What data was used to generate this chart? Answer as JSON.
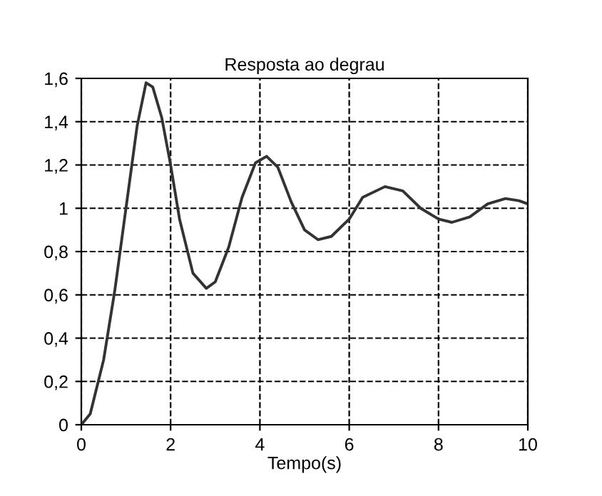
{
  "chart_data": {
    "type": "line",
    "title": "Resposta ao degrau",
    "xlabel": "Tempo(s)",
    "x": [
      0,
      0.2,
      0.5,
      0.75,
      1.0,
      1.25,
      1.45,
      1.6,
      1.8,
      2.0,
      2.2,
      2.5,
      2.8,
      3.0,
      3.3,
      3.6,
      3.9,
      4.15,
      4.4,
      4.7,
      5.0,
      5.3,
      5.6,
      6.0,
      6.3,
      6.8,
      7.2,
      7.6,
      8.0,
      8.3,
      8.7,
      9.1,
      9.5,
      9.8,
      10
    ],
    "series": [
      {
        "color": "#333333",
        "values": [
          0,
          0.05,
          0.3,
          0.62,
          1.0,
          1.38,
          1.58,
          1.56,
          1.42,
          1.2,
          0.95,
          0.7,
          0.63,
          0.66,
          0.82,
          1.05,
          1.21,
          1.24,
          1.19,
          1.03,
          0.9,
          0.855,
          0.87,
          0.95,
          1.05,
          1.1,
          1.08,
          1.0,
          0.95,
          0.935,
          0.96,
          1.02,
          1.045,
          1.035,
          1.02
        ]
      }
    ],
    "xlim": [
      0,
      10
    ],
    "ylim": [
      0,
      1.6
    ],
    "xticks": [
      0,
      2,
      4,
      6,
      8,
      10
    ],
    "yticks": [
      0,
      {
        "value": 0.2,
        "label": "0,2"
      },
      {
        "value": 0.4,
        "label": "0,4"
      },
      {
        "value": 0.6,
        "label": "0,6"
      },
      {
        "value": 0.8,
        "label": "0,8"
      },
      1,
      {
        "value": 1.2,
        "label": "1,2"
      },
      {
        "value": 1.4,
        "label": "1,4"
      },
      {
        "value": 1.6,
        "label": "1,6"
      }
    ],
    "grid": true,
    "line_style": "solid",
    "marker": "none"
  }
}
